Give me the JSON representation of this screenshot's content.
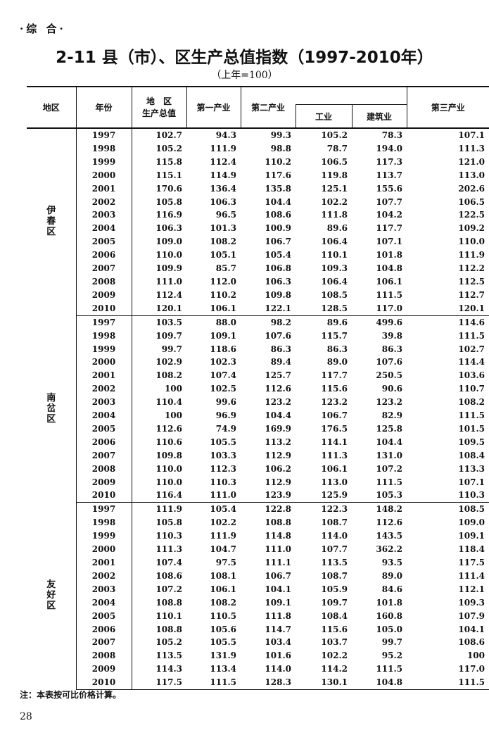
{
  "section": "·综 合·",
  "title": "2-11  县（市）、区生产总值指数（1997-2010年）",
  "subtitle": "（上年=100）",
  "headers": {
    "region": "地区",
    "year": "年份",
    "gdp": "地　区\n生产总值",
    "primary": "第一产业",
    "secondary": "第二产业",
    "industry": "工业",
    "construction": "建筑业",
    "tertiary": "第三产业"
  },
  "years": [
    "1997",
    "1998",
    "1999",
    "2000",
    "2001",
    "2002",
    "2003",
    "2004",
    "2005",
    "2006",
    "2007",
    "2008",
    "2009",
    "2010"
  ],
  "blocks": [
    {
      "region": "伊春区",
      "rows": [
        [
          "102.7",
          "94.3",
          "99.3",
          "105.2",
          "78.3",
          "107.1"
        ],
        [
          "105.2",
          "111.9",
          "98.8",
          "78.7",
          "194.0",
          "111.3"
        ],
        [
          "115.8",
          "112.4",
          "110.2",
          "106.5",
          "117.3",
          "121.0"
        ],
        [
          "115.1",
          "114.9",
          "117.6",
          "119.8",
          "113.7",
          "113.0"
        ],
        [
          "170.6",
          "136.4",
          "135.8",
          "125.1",
          "155.6",
          "202.6"
        ],
        [
          "105.8",
          "106.3",
          "104.4",
          "102.2",
          "107.7",
          "106.5"
        ],
        [
          "116.9",
          "96.5",
          "108.6",
          "111.8",
          "104.2",
          "122.5"
        ],
        [
          "106.3",
          "101.3",
          "100.9",
          "89.6",
          "117.7",
          "109.2"
        ],
        [
          "109.0",
          "108.2",
          "106.7",
          "106.4",
          "107.1",
          "110.0"
        ],
        [
          "110.0",
          "105.1",
          "105.4",
          "110.1",
          "101.8",
          "111.9"
        ],
        [
          "109.9",
          "85.7",
          "106.8",
          "109.3",
          "104.8",
          "112.2"
        ],
        [
          "111.0",
          "112.0",
          "106.3",
          "106.4",
          "106.1",
          "112.5"
        ],
        [
          "112.4",
          "110.2",
          "109.8",
          "108.5",
          "111.5",
          "112.7"
        ],
        [
          "120.1",
          "106.1",
          "122.1",
          "128.5",
          "117.0",
          "120.1"
        ]
      ]
    },
    {
      "region": "南岔区",
      "rows": [
        [
          "103.5",
          "88.0",
          "98.2",
          "89.6",
          "499.6",
          "114.6"
        ],
        [
          "109.7",
          "109.1",
          "107.6",
          "115.7",
          "39.8",
          "111.5"
        ],
        [
          "99.7",
          "118.6",
          "86.3",
          "86.3",
          "86.3",
          "102.7"
        ],
        [
          "102.9",
          "102.3",
          "89.4",
          "89.0",
          "107.6",
          "114.4"
        ],
        [
          "108.2",
          "107.4",
          "125.7",
          "117.7",
          "250.5",
          "103.6"
        ],
        [
          "100",
          "102.5",
          "112.6",
          "115.6",
          "90.6",
          "110.7"
        ],
        [
          "110.4",
          "99.6",
          "123.2",
          "123.2",
          "123.2",
          "108.2"
        ],
        [
          "100",
          "96.9",
          "104.4",
          "106.7",
          "82.9",
          "111.5"
        ],
        [
          "112.6",
          "74.9",
          "169.9",
          "176.5",
          "125.8",
          "101.5"
        ],
        [
          "110.6",
          "105.5",
          "113.2",
          "114.1",
          "104.4",
          "109.5"
        ],
        [
          "109.8",
          "103.3",
          "112.9",
          "111.3",
          "131.0",
          "108.4"
        ],
        [
          "110.0",
          "112.3",
          "106.2",
          "106.1",
          "107.2",
          "113.3"
        ],
        [
          "110.0",
          "110.3",
          "112.9",
          "113.0",
          "111.5",
          "107.1"
        ],
        [
          "116.4",
          "111.0",
          "123.9",
          "125.9",
          "105.3",
          "110.3"
        ]
      ]
    },
    {
      "region": "友好区",
      "rows": [
        [
          "111.9",
          "105.4",
          "122.8",
          "122.3",
          "148.2",
          "108.5"
        ],
        [
          "105.8",
          "102.2",
          "108.8",
          "108.7",
          "112.6",
          "109.0"
        ],
        [
          "110.3",
          "111.9",
          "114.8",
          "114.0",
          "143.5",
          "109.1"
        ],
        [
          "111.3",
          "104.7",
          "111.0",
          "107.7",
          "362.2",
          "118.4"
        ],
        [
          "107.4",
          "97.5",
          "111.1",
          "113.5",
          "93.5",
          "117.5"
        ],
        [
          "108.6",
          "108.1",
          "106.7",
          "108.7",
          "89.0",
          "111.4"
        ],
        [
          "107.2",
          "106.1",
          "104.1",
          "105.9",
          "84.6",
          "112.1"
        ],
        [
          "108.8",
          "108.2",
          "109.1",
          "109.7",
          "101.8",
          "109.3"
        ],
        [
          "110.1",
          "110.5",
          "111.8",
          "108.4",
          "160.8",
          "107.9"
        ],
        [
          "108.8",
          "105.6",
          "114.7",
          "115.6",
          "105.0",
          "104.1"
        ],
        [
          "105.2",
          "105.5",
          "103.4",
          "103.7",
          "99.7",
          "108.6"
        ],
        [
          "113.5",
          "131.9",
          "101.6",
          "102.2",
          "95.2",
          "100"
        ],
        [
          "114.3",
          "113.4",
          "114.0",
          "114.2",
          "111.5",
          "117.0"
        ],
        [
          "117.5",
          "111.5",
          "128.3",
          "130.1",
          "104.8",
          "111.5"
        ]
      ]
    }
  ],
  "note": "注：本表按可比价格计算。",
  "page_number": "28"
}
